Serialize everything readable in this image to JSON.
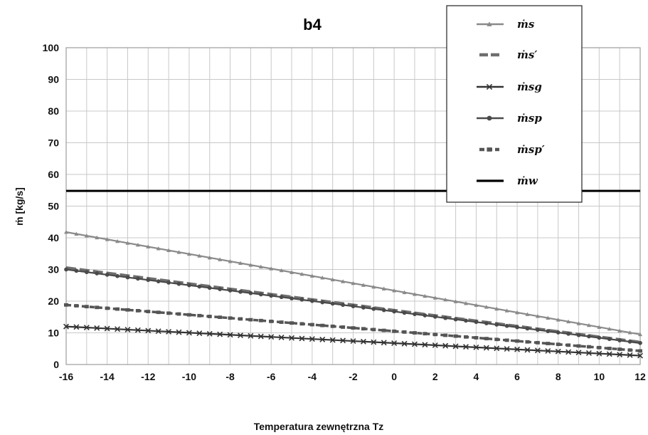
{
  "chart_data": {
    "type": "line",
    "title": "b4",
    "xlabel": "Temperatura zewnętrzna Tz",
    "ylabel": "ṁ [kg/s]",
    "xlim": [
      -16,
      12
    ],
    "ylim": [
      0,
      100
    ],
    "x_ticks": [
      "-16",
      "-14",
      "-12",
      "-10",
      "-8",
      "-6",
      "-4",
      "-2",
      "0",
      "2",
      "4",
      "6",
      "8",
      "10",
      "12"
    ],
    "y_ticks": [
      "0",
      "10",
      "20",
      "30",
      "40",
      "50",
      "60",
      "70",
      "80",
      "90",
      "100"
    ],
    "grid": true,
    "legend_position": "top-right",
    "series": [
      {
        "name": "ṁs",
        "marker": "triangle",
        "color": "#8a8a8a",
        "dash": "solid",
        "values": [
          [
            -16,
            41.8
          ],
          [
            12,
            9.5
          ]
        ]
      },
      {
        "name": "ṁs′",
        "marker": "none",
        "color": "#6e6e6e",
        "dash": "dash",
        "values": [
          [
            -16,
            30.5
          ],
          [
            12,
            7.0
          ]
        ]
      },
      {
        "name": "ṁsg",
        "marker": "x",
        "color": "#333333",
        "dash": "solid",
        "values": [
          [
            -16,
            12.0
          ],
          [
            12,
            2.8
          ]
        ]
      },
      {
        "name": "ṁsp",
        "marker": "circle",
        "color": "#4a4a4a",
        "dash": "solid",
        "values": [
          [
            -16,
            30.0
          ],
          [
            12,
            6.8
          ]
        ]
      },
      {
        "name": "ṁsp′",
        "marker": "square",
        "color": "#555555",
        "dash": "dash",
        "values": [
          [
            -16,
            18.8
          ],
          [
            12,
            4.3
          ]
        ]
      },
      {
        "name": "ṁw",
        "marker": "none",
        "color": "#000000",
        "dash": "solid",
        "values": [
          [
            -16,
            54.8
          ],
          [
            12,
            54.8
          ]
        ]
      }
    ]
  }
}
